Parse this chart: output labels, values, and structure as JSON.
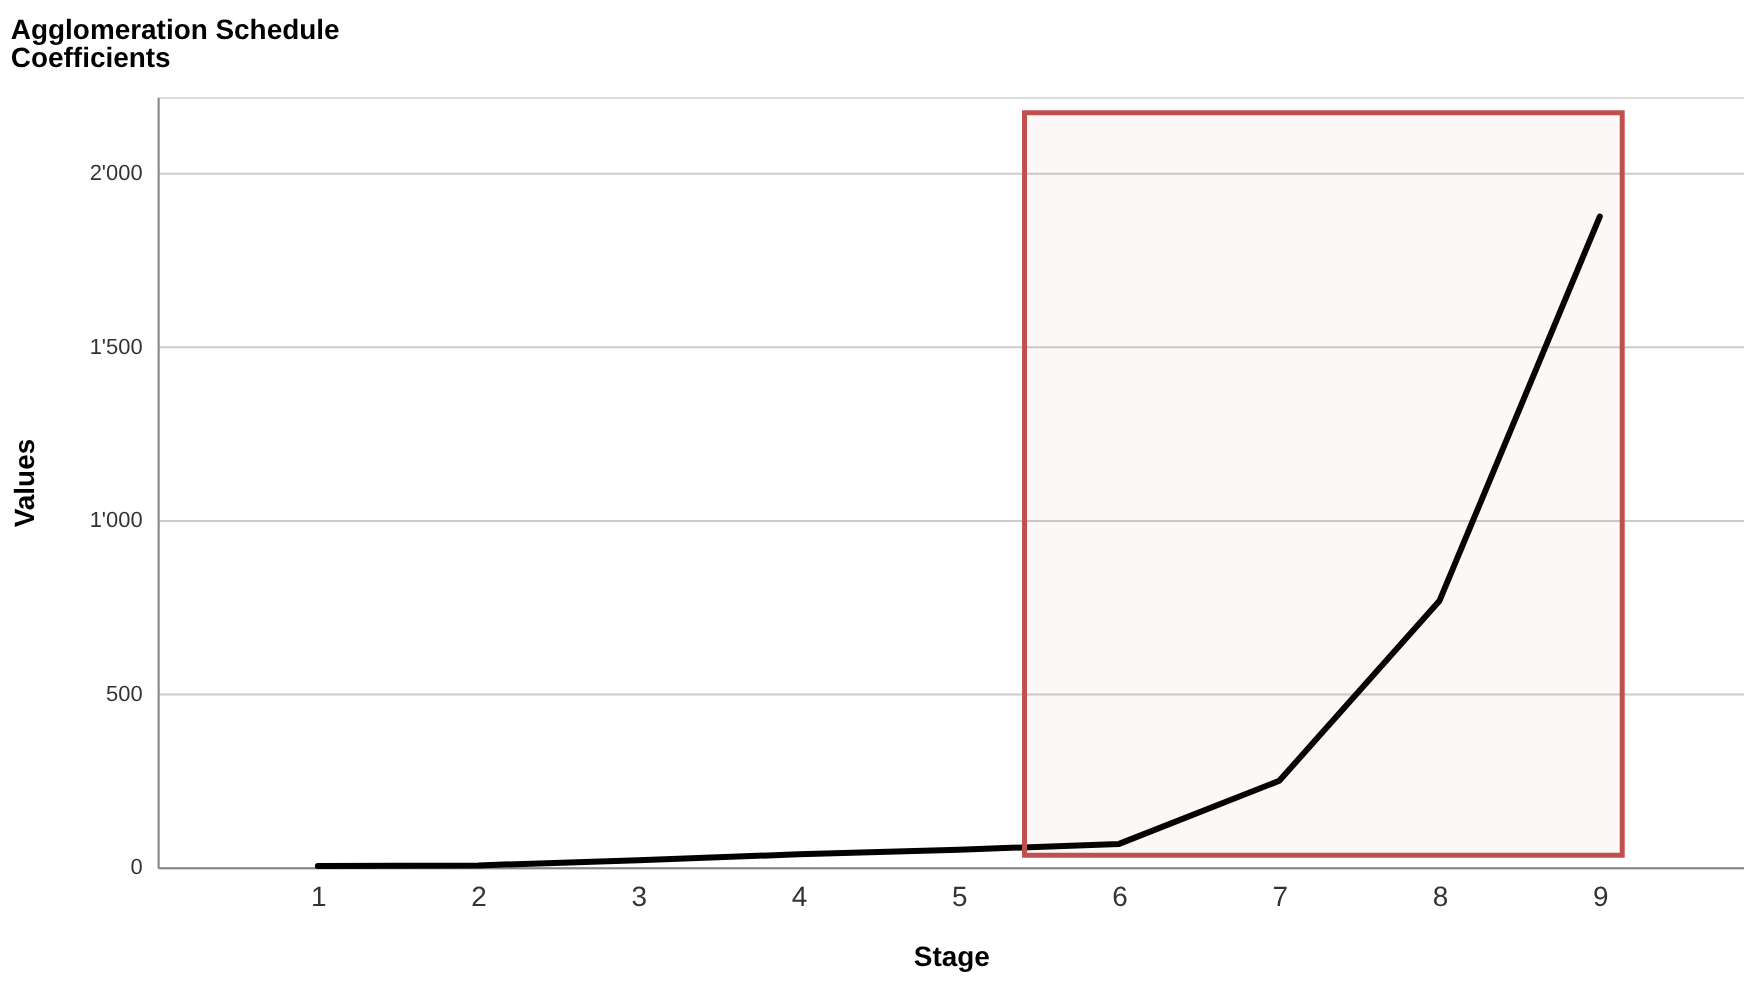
{
  "chart_data": {
    "type": "line",
    "title": "Agglomeration Schedule",
    "subtitle": "Coefficients",
    "xlabel": "Stage",
    "ylabel": "Values",
    "x": [
      1,
      2,
      3,
      4,
      5,
      6,
      7,
      8,
      9
    ],
    "series": [
      {
        "color": "#000000",
        "values": [
          3,
          5,
          20,
          37,
          50,
          67,
          249,
          768,
          1875
        ]
      }
    ],
    "xlim": [
      0,
      9.9
    ],
    "xticks": [
      1,
      2,
      3,
      4,
      5,
      6,
      7,
      8,
      9
    ],
    "ylim": [
      0,
      2220
    ],
    "yticks": [
      0,
      500,
      {
        "value": 1000,
        "label": "1'000"
      },
      {
        "value": 1500,
        "label": "1'500"
      },
      {
        "value": 2000,
        "label": "2'000"
      }
    ],
    "bands": [
      {
        "axis": "x",
        "from": 5.41,
        "to": 9.14,
        "color": "#c0504d"
      }
    ],
    "grid": "y",
    "marker": "none",
    "line_style": "solid"
  }
}
